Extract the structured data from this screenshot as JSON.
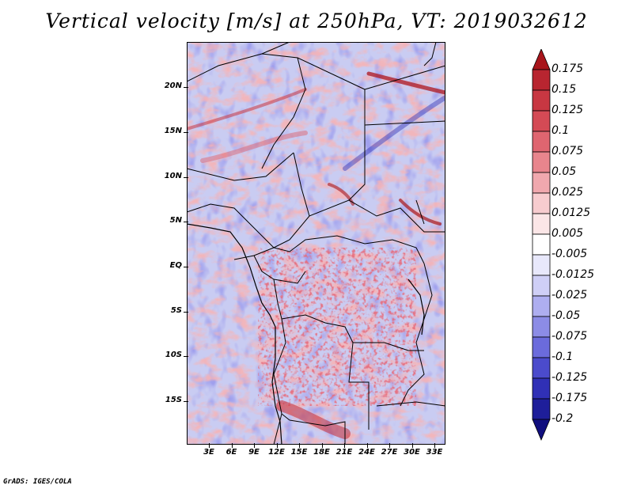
{
  "title": "Vertical velocity [m/s] at 250hPa, VT: 2019032612",
  "footer": "GrADS: IGES/COLA",
  "map": {
    "lat_labels": [
      "20N",
      "15N",
      "10N",
      "5N",
      "EQ",
      "5S",
      "10S",
      "15S"
    ],
    "lon_labels": [
      "3E",
      "6E",
      "9E",
      "12E",
      "15E",
      "18E",
      "21E",
      "24E",
      "27E",
      "30E",
      "33E"
    ]
  },
  "colorbar": {
    "levels": [
      "0.175",
      "0.15",
      "0.125",
      "0.1",
      "0.075",
      "0.05",
      "0.025",
      "0.0125",
      "0.005",
      "-0.005",
      "-0.0125",
      "-0.025",
      "-0.05",
      "-0.075",
      "-0.1",
      "-0.125",
      "-0.175",
      "-0.2"
    ],
    "colors": [
      "#a8151b",
      "#b82530",
      "#c83742",
      "#d44a55",
      "#df6570",
      "#e8858d",
      "#f0a8ae",
      "#f7cccf",
      "#fbe6e7",
      "#ffffff",
      "#e8e8fb",
      "#cfcff6",
      "#aeaef0",
      "#8c8ce6",
      "#6b6bdc",
      "#4b4bcc",
      "#3030b6",
      "#1e1e9a",
      "#100e7e"
    ]
  }
}
